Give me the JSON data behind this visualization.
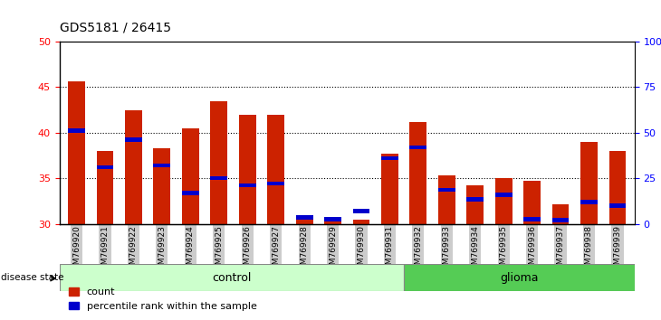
{
  "title": "GDS5181 / 26415",
  "samples": [
    "GSM769920",
    "GSM769921",
    "GSM769922",
    "GSM769923",
    "GSM769924",
    "GSM769925",
    "GSM769926",
    "GSM769927",
    "GSM769928",
    "GSM769929",
    "GSM769930",
    "GSM769931",
    "GSM769932",
    "GSM769933",
    "GSM769934",
    "GSM769935",
    "GSM769936",
    "GSM769937",
    "GSM769938",
    "GSM769939"
  ],
  "count_values": [
    45.6,
    38.0,
    42.5,
    38.3,
    40.5,
    43.5,
    42.0,
    42.0,
    30.7,
    30.5,
    30.5,
    37.7,
    41.2,
    35.3,
    34.2,
    35.0,
    34.7,
    32.2,
    39.0,
    38.0
  ],
  "percentile_values": [
    40.0,
    36.0,
    39.0,
    36.2,
    33.2,
    34.8,
    34.0,
    34.2,
    30.5,
    30.3,
    31.2,
    37.0,
    38.2,
    33.5,
    32.5,
    33.0,
    30.3,
    30.2,
    32.2,
    31.8
  ],
  "control_count": 12,
  "glioma_count": 8,
  "ylim_left": [
    30,
    50
  ],
  "yticks_left": [
    30,
    35,
    40,
    45,
    50
  ],
  "ylim_right": [
    0,
    100
  ],
  "yticks_right": [
    0,
    25,
    50,
    75,
    100
  ],
  "bar_color": "#cc2200",
  "percentile_color": "#0000cc",
  "control_bg": "#ccffcc",
  "glioma_bg": "#55cc55",
  "tick_bg": "#cccccc",
  "bar_width": 0.6,
  "legend_count_label": "count",
  "legend_percentile_label": "percentile rank within the sample",
  "disease_state_label": "disease state",
  "control_label": "control",
  "glioma_label": "glioma"
}
